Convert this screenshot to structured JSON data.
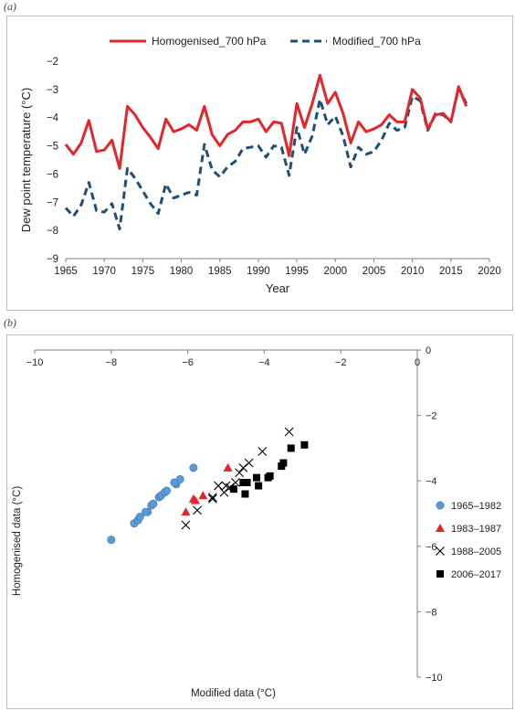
{
  "panel_labels": {
    "a": "(a)",
    "b": "(b)"
  },
  "colors": {
    "homogenised": "#e5252a",
    "modified": "#1f4e79",
    "blue_points": "#5b9bd5",
    "red_points": "#e5252a",
    "black_points": "#000000",
    "axis": "#808080"
  },
  "chart_data": [
    {
      "type": "line",
      "xlabel": "Year",
      "ylabel": "Dew point temperature (°C)",
      "xlim": [
        1965,
        2020
      ],
      "ylim": [
        -9,
        -2
      ],
      "xticks": [
        1965,
        1970,
        1975,
        1980,
        1985,
        1990,
        1995,
        2000,
        2005,
        2010,
        2015,
        2020
      ],
      "yticks": [
        -2,
        -3,
        -4,
        -5,
        -6,
        -7,
        -8,
        -9
      ],
      "ytick_labels": [
        "−2",
        "−3",
        "−4",
        "−5",
        "−6",
        "−7",
        "−8",
        "−9"
      ],
      "grid": false,
      "legend_position": "top",
      "x": [
        1965,
        1966,
        1967,
        1968,
        1969,
        1970,
        1971,
        1972,
        1973,
        1974,
        1975,
        1976,
        1977,
        1978,
        1979,
        1980,
        1981,
        1982,
        1983,
        1984,
        1985,
        1986,
        1987,
        1988,
        1989,
        1990,
        1991,
        1992,
        1993,
        1994,
        1995,
        1996,
        1997,
        1998,
        1999,
        2000,
        2001,
        2002,
        2003,
        2004,
        2005,
        2006,
        2007,
        2008,
        2009,
        2010,
        2011,
        2012,
        2013,
        2014,
        2015,
        2016,
        2017
      ],
      "series": [
        {
          "name": "Homogenised_700 hPa",
          "style": "solid",
          "values": [
            -4.95,
            -5.3,
            -4.9,
            -4.1,
            -5.2,
            -5.15,
            -4.8,
            -5.8,
            -3.6,
            -3.9,
            -4.35,
            -4.7,
            -5.1,
            -4.05,
            -4.5,
            -4.4,
            -4.25,
            -4.45,
            -3.6,
            -4.6,
            -5.0,
            -4.6,
            -4.45,
            -4.15,
            -4.15,
            -4.05,
            -4.5,
            -4.15,
            -4.2,
            -5.35,
            -3.5,
            -4.35,
            -3.5,
            -2.5,
            -3.5,
            -3.1,
            -3.85,
            -4.9,
            -4.15,
            -4.5,
            -4.4,
            -4.25,
            -3.9,
            -4.15,
            -4.15,
            -3.0,
            -3.3,
            -4.4,
            -3.9,
            -3.85,
            -4.15,
            -2.9,
            -3.6
          ]
        },
        {
          "name": "Modified_700 hPa",
          "style": "dashed",
          "values": [
            -7.2,
            -7.5,
            -7.1,
            -6.3,
            -7.3,
            -7.35,
            -7.05,
            -7.95,
            -5.8,
            -6.15,
            -6.6,
            -7.05,
            -7.4,
            -6.35,
            -6.85,
            -6.75,
            -6.65,
            -6.75,
            -4.95,
            -5.85,
            -6.1,
            -5.75,
            -5.55,
            -5.1,
            -5.05,
            -5.0,
            -5.4,
            -5.0,
            -5.05,
            -6.05,
            -4.35,
            -5.3,
            -4.65,
            -3.35,
            -4.25,
            -3.95,
            -4.65,
            -5.75,
            -5.05,
            -5.3,
            -5.2,
            -4.8,
            -4.2,
            -4.45,
            -4.35,
            -3.25,
            -3.4,
            -4.45,
            -3.85,
            -3.9,
            -4.15,
            -2.95,
            -3.5
          ]
        }
      ]
    },
    {
      "type": "scatter",
      "xlabel": "Modified data (°C)",
      "ylabel": "Homogenised data (°C)",
      "xlim": [
        -10,
        0
      ],
      "ylim": [
        -10,
        0
      ],
      "xticks": [
        -10,
        -8,
        -6,
        -4,
        -2,
        0
      ],
      "xtick_labels": [
        "−10",
        "−8",
        "−6",
        "−4",
        "−2",
        "0"
      ],
      "yticks": [
        0,
        -2,
        -4,
        -6,
        -8,
        -10
      ],
      "ytick_labels": [
        "0",
        "−2",
        "−4",
        "−6",
        "−8",
        "−10"
      ],
      "grid": false,
      "legend_position": "right",
      "series": [
        {
          "name": "1965–1982",
          "marker": "circle",
          "points": [
            [
              -8.0,
              -5.8
            ],
            [
              -7.4,
              -5.3
            ],
            [
              -7.3,
              -5.2
            ],
            [
              -7.25,
              -5.1
            ],
            [
              -7.05,
              -4.95
            ],
            [
              -7.1,
              -4.95
            ],
            [
              -6.95,
              -4.75
            ],
            [
              -6.9,
              -4.7
            ],
            [
              -6.75,
              -4.5
            ],
            [
              -6.7,
              -4.45
            ],
            [
              -6.6,
              -4.35
            ],
            [
              -6.55,
              -4.3
            ],
            [
              -6.3,
              -4.1
            ],
            [
              -6.35,
              -4.05
            ],
            [
              -6.2,
              -3.95
            ],
            [
              -5.85,
              -3.6
            ]
          ]
        },
        {
          "name": "1983–1987",
          "marker": "triangle",
          "points": [
            [
              -6.05,
              -4.95
            ],
            [
              -5.8,
              -4.6
            ],
            [
              -5.85,
              -4.55
            ],
            [
              -5.6,
              -4.45
            ],
            [
              -4.95,
              -3.6
            ]
          ]
        },
        {
          "name": "1988–2005",
          "marker": "x",
          "points": [
            [
              -6.05,
              -5.35
            ],
            [
              -5.75,
              -4.9
            ],
            [
              -5.35,
              -4.5
            ],
            [
              -5.05,
              -4.35
            ],
            [
              -5.2,
              -4.15
            ],
            [
              -5.0,
              -4.15
            ],
            [
              -4.75,
              -4.05
            ],
            [
              -4.65,
              -3.75
            ],
            [
              -4.55,
              -3.6
            ],
            [
              -4.4,
              -3.45
            ],
            [
              -4.05,
              -3.1
            ],
            [
              -3.35,
              -2.5
            ],
            [
              -5.35,
              -4.55
            ],
            [
              -4.9,
              -4.2
            ]
          ]
        },
        {
          "name": "2006–2017",
          "marker": "square",
          "points": [
            [
              -4.8,
              -4.25
            ],
            [
              -4.5,
              -4.4
            ],
            [
              -4.45,
              -4.05
            ],
            [
              -4.55,
              -4.05
            ],
            [
              -4.2,
              -3.9
            ],
            [
              -4.15,
              -4.15
            ],
            [
              -3.9,
              -3.9
            ],
            [
              -3.55,
              -3.55
            ],
            [
              -3.5,
              -3.45
            ],
            [
              -3.3,
              -3.0
            ],
            [
              -2.95,
              -2.9
            ],
            [
              -3.85,
              -3.85
            ]
          ]
        }
      ]
    }
  ]
}
